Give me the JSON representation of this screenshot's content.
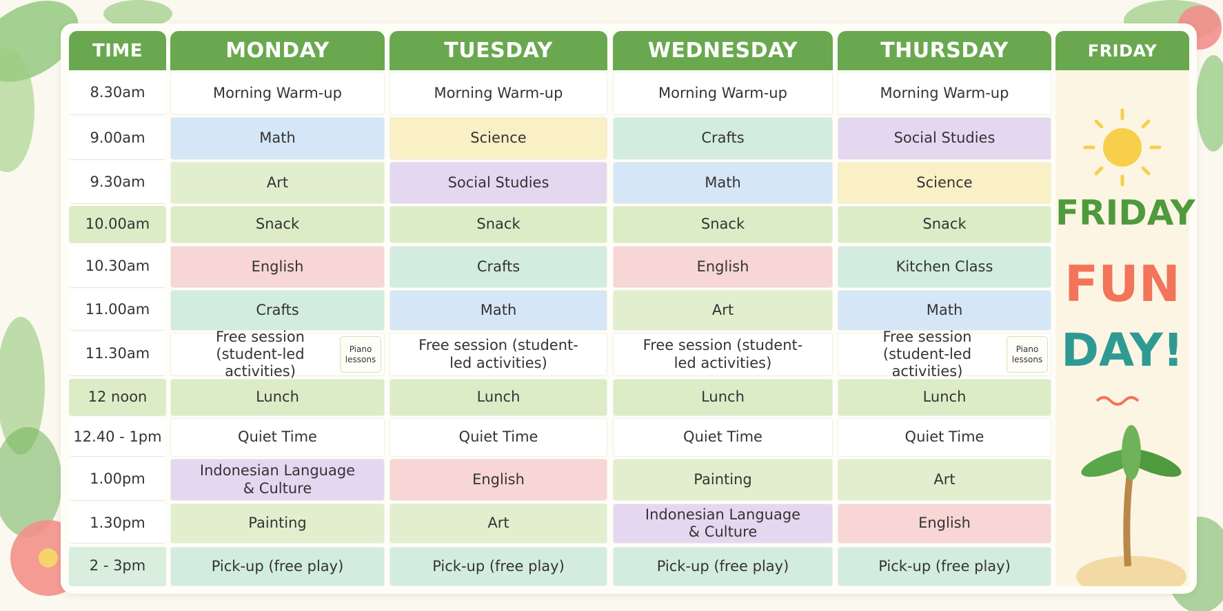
{
  "header": {
    "columns": [
      "TIME",
      "MONDAY",
      "TUESDAY",
      "WEDNESDAY",
      "THURSDAY",
      "FRIDAY"
    ],
    "color": "#6aa84f"
  },
  "times": [
    {
      "label": "8.30am",
      "color": "#ffffff"
    },
    {
      "label": "9.00am",
      "color": "#ffffff"
    },
    {
      "label": "9.30am",
      "color": "#ffffff"
    },
    {
      "label": "10.00am",
      "color": "#dcecc7"
    },
    {
      "label": "10.30am",
      "color": "#ffffff"
    },
    {
      "label": "11.00am",
      "color": "#ffffff"
    },
    {
      "label": "11.30am",
      "color": "#ffffff"
    },
    {
      "label": "12 noon",
      "color": "#dcecc7"
    },
    {
      "label": "12.40 - 1pm",
      "color": "#ffffff"
    },
    {
      "label": "1.00pm",
      "color": "#ffffff"
    },
    {
      "label": "1.30pm",
      "color": "#ffffff"
    },
    {
      "label": "2 - 3pm",
      "color": "#d9eedc"
    }
  ],
  "days": [
    {
      "cells": [
        {
          "text": "Morning Warm-up",
          "color": "#ffffff"
        },
        {
          "text": "Math",
          "color": "#d5e6f7"
        },
        {
          "text": "Art",
          "color": "#e1efcf"
        },
        {
          "text": "Snack",
          "color": "#dcecc7"
        },
        {
          "text": "English",
          "color": "#f8d6d6"
        },
        {
          "text": "Crafts",
          "color": "#d2ece0"
        },
        {
          "text": "Free session (student-led activities)",
          "color": "#ffffff",
          "note": "Piano lessons"
        },
        {
          "text": "Lunch",
          "color": "#dcecc7"
        },
        {
          "text": "Quiet Time",
          "color": "#ffffff"
        },
        {
          "text": "Indonesian Language & Culture",
          "color": "#e4d8f1"
        },
        {
          "text": "Painting",
          "color": "#e1efcf"
        },
        {
          "text": "Pick-up (free play)",
          "color": "#d2ece0"
        }
      ]
    },
    {
      "cells": [
        {
          "text": "Morning Warm-up",
          "color": "#ffffff"
        },
        {
          "text": "Science",
          "color": "#faf0c6"
        },
        {
          "text": "Social Studies",
          "color": "#e4d8f1"
        },
        {
          "text": "Snack",
          "color": "#dcecc7"
        },
        {
          "text": "Crafts",
          "color": "#d2ece0"
        },
        {
          "text": "Math",
          "color": "#d5e6f7"
        },
        {
          "text": "Free session (student-led activities)",
          "color": "#ffffff"
        },
        {
          "text": "Lunch",
          "color": "#dcecc7"
        },
        {
          "text": "Quiet Time",
          "color": "#ffffff"
        },
        {
          "text": "English",
          "color": "#f8d6d6"
        },
        {
          "text": "Art",
          "color": "#e1efcf"
        },
        {
          "text": "Pick-up (free play)",
          "color": "#d2ece0"
        }
      ]
    },
    {
      "cells": [
        {
          "text": "Morning Warm-up",
          "color": "#ffffff"
        },
        {
          "text": "Crafts",
          "color": "#d2ece0"
        },
        {
          "text": "Math",
          "color": "#d5e6f7"
        },
        {
          "text": "Snack",
          "color": "#dcecc7"
        },
        {
          "text": "English",
          "color": "#f8d6d6"
        },
        {
          "text": "Art",
          "color": "#e1efcf"
        },
        {
          "text": "Free session (student-led activities)",
          "color": "#ffffff"
        },
        {
          "text": "Lunch",
          "color": "#dcecc7"
        },
        {
          "text": "Quiet Time",
          "color": "#ffffff"
        },
        {
          "text": "Painting",
          "color": "#e1efcf"
        },
        {
          "text": "Indonesian Language & Culture",
          "color": "#e4d8f1"
        },
        {
          "text": "Pick-up (free play)",
          "color": "#d2ece0"
        }
      ]
    },
    {
      "cells": [
        {
          "text": "Morning Warm-up",
          "color": "#ffffff"
        },
        {
          "text": "Social Studies",
          "color": "#e4d8f1"
        },
        {
          "text": "Science",
          "color": "#faf0c6"
        },
        {
          "text": "Snack",
          "color": "#dcecc7"
        },
        {
          "text": "Kitchen Class",
          "color": "#d2ece0"
        },
        {
          "text": "Math",
          "color": "#d5e6f7"
        },
        {
          "text": "Free session (student-led activities)",
          "color": "#ffffff",
          "note": "Piano lessons"
        },
        {
          "text": "Lunch",
          "color": "#dcecc7"
        },
        {
          "text": "Quiet Time",
          "color": "#ffffff"
        },
        {
          "text": "Art",
          "color": "#e1efcf"
        },
        {
          "text": "English",
          "color": "#f8d6d6"
        },
        {
          "text": "Pick-up (free play)",
          "color": "#d2ece0"
        }
      ]
    }
  ],
  "friday": {
    "lines": [
      "FRIDAY",
      "FUN",
      "DAY!"
    ],
    "colors": [
      "#4f9a3c",
      "#f2745a",
      "#2f9a94"
    ]
  }
}
